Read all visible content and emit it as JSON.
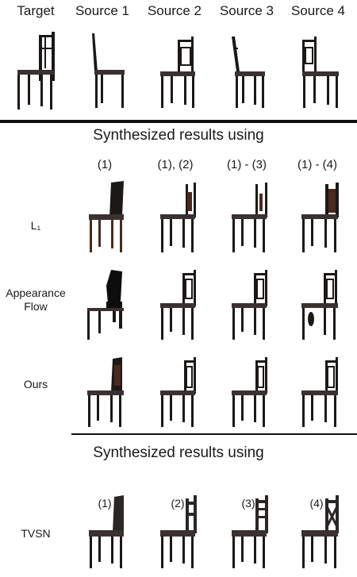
{
  "top_headers": [
    "Target",
    "Source 1",
    "Source 2",
    "Source 3",
    "Source 4"
  ],
  "section1": {
    "title": "Synthesized results using",
    "columns": [
      "(1)",
      "(1), (2)",
      "(1) - (3)",
      "(1) - (4)"
    ],
    "rows": [
      {
        "label": "L₁"
      },
      {
        "label": "Appearance\nFlow"
      },
      {
        "label": "Ours"
      }
    ]
  },
  "section2": {
    "title": "Synthesized results using",
    "columns": [
      "(1)",
      "(2)",
      "(3)",
      "(4)"
    ],
    "rows": [
      {
        "label": "TVSN"
      }
    ]
  },
  "colors": {
    "chair_dark": "#1c1815",
    "chair_brown": "#4a2a1e",
    "seat": "#3a3130"
  }
}
